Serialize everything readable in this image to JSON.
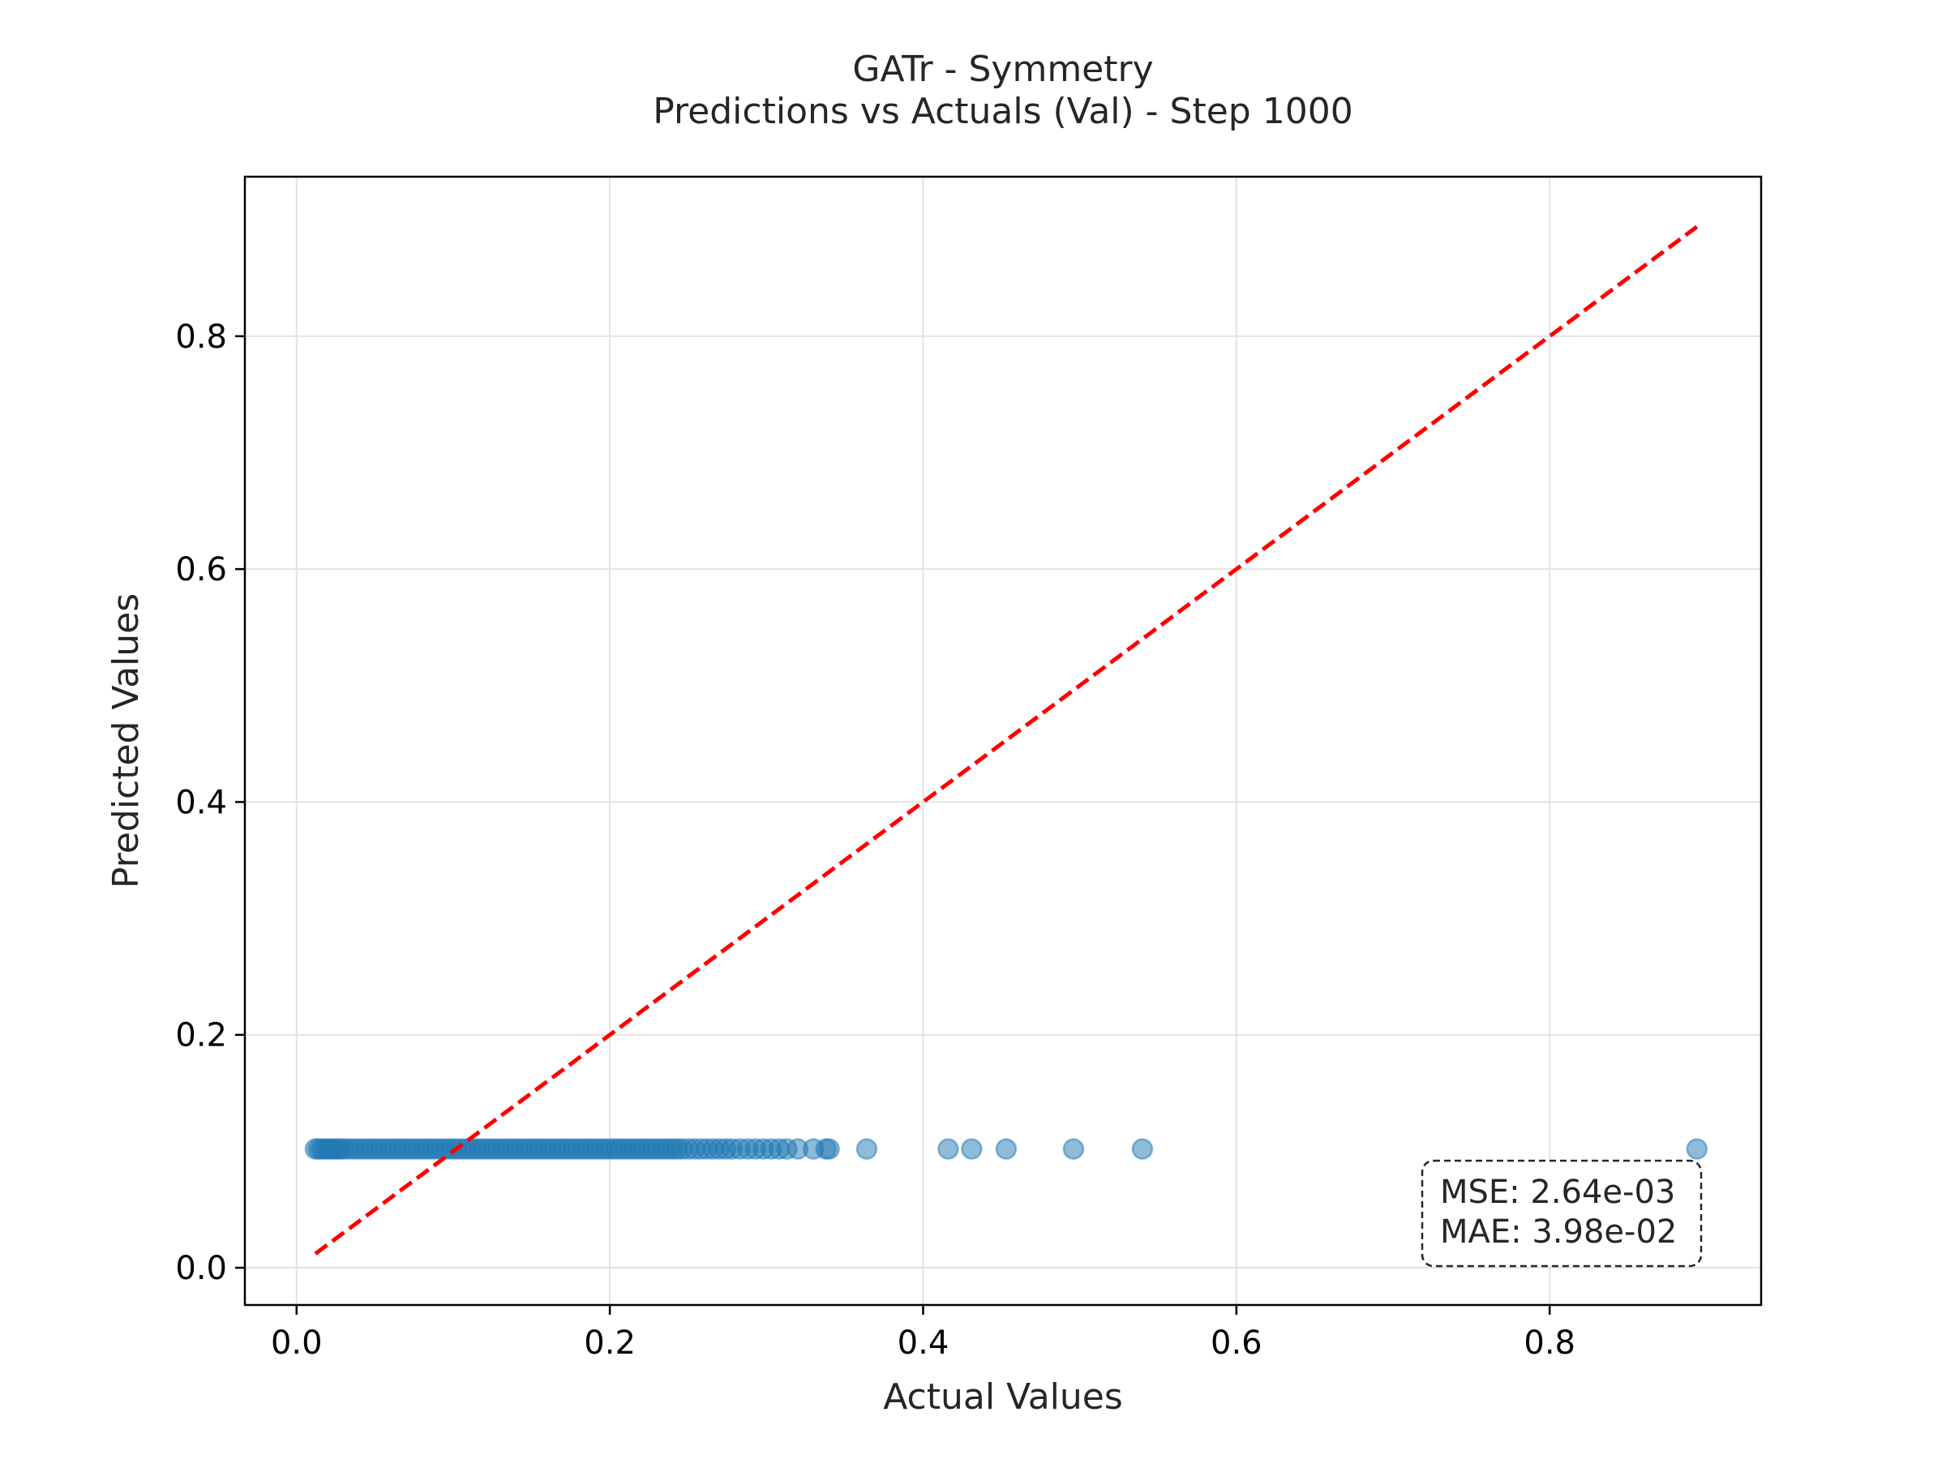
{
  "chart_data": {
    "type": "scatter",
    "title": "GATr - Symmetry",
    "subtitle": "Predictions vs Actuals (Val) - Step 1000",
    "xlabel": "Actual Values",
    "ylabel": "Predicted Values",
    "xlim": [
      -0.033,
      0.935
    ],
    "ylim": [
      -0.032,
      0.937
    ],
    "xticks": [
      0.0,
      0.2,
      0.4,
      0.6,
      0.8
    ],
    "yticks": [
      0.0,
      0.2,
      0.4,
      0.6,
      0.8
    ],
    "xtick_labels": [
      "0.0",
      "0.2",
      "0.4",
      "0.6",
      "0.8"
    ],
    "ytick_labels": [
      "0.0",
      "0.2",
      "0.4",
      "0.6",
      "0.8"
    ],
    "grid": true,
    "legend": "none",
    "point_color": "#1f77b4",
    "point_alpha": 0.5,
    "series": [
      {
        "x": [
          0.012,
          0.014,
          0.016,
          0.018,
          0.02,
          0.022,
          0.024,
          0.026,
          0.028,
          0.03,
          0.033,
          0.036,
          0.039,
          0.042,
          0.045,
          0.048,
          0.051,
          0.054,
          0.057,
          0.06,
          0.063,
          0.066,
          0.069,
          0.072,
          0.075,
          0.078,
          0.081,
          0.084,
          0.087,
          0.09,
          0.093,
          0.096,
          0.099,
          0.102,
          0.105,
          0.108,
          0.111,
          0.114,
          0.117,
          0.12,
          0.123,
          0.126,
          0.129,
          0.132,
          0.135,
          0.138,
          0.141,
          0.144,
          0.147,
          0.15,
          0.153,
          0.156,
          0.159,
          0.162,
          0.165,
          0.168,
          0.171,
          0.174,
          0.177,
          0.18,
          0.183,
          0.186,
          0.189,
          0.192,
          0.195,
          0.198,
          0.201,
          0.204,
          0.207,
          0.21,
          0.213,
          0.216,
          0.219,
          0.222,
          0.225,
          0.228,
          0.231,
          0.234,
          0.237,
          0.24,
          0.243,
          0.246,
          0.25,
          0.254,
          0.258,
          0.262,
          0.266,
          0.27,
          0.274,
          0.278,
          0.283,
          0.288,
          0.293,
          0.298,
          0.303,
          0.308,
          0.313,
          0.32,
          0.33,
          0.338,
          0.34,
          0.364,
          0.416,
          0.431,
          0.453,
          0.496,
          0.54,
          0.894
        ],
        "y": [
          0.102,
          0.102,
          0.102,
          0.102,
          0.102,
          0.102,
          0.102,
          0.102,
          0.102,
          0.102,
          0.102,
          0.102,
          0.102,
          0.102,
          0.102,
          0.102,
          0.102,
          0.102,
          0.102,
          0.102,
          0.102,
          0.102,
          0.102,
          0.102,
          0.102,
          0.102,
          0.102,
          0.102,
          0.102,
          0.102,
          0.102,
          0.102,
          0.102,
          0.102,
          0.102,
          0.102,
          0.102,
          0.102,
          0.102,
          0.102,
          0.102,
          0.102,
          0.102,
          0.102,
          0.102,
          0.102,
          0.102,
          0.102,
          0.102,
          0.102,
          0.102,
          0.102,
          0.102,
          0.102,
          0.102,
          0.102,
          0.102,
          0.102,
          0.102,
          0.102,
          0.102,
          0.102,
          0.102,
          0.102,
          0.102,
          0.102,
          0.102,
          0.102,
          0.102,
          0.102,
          0.102,
          0.102,
          0.102,
          0.102,
          0.102,
          0.102,
          0.102,
          0.102,
          0.102,
          0.102,
          0.102,
          0.102,
          0.102,
          0.102,
          0.102,
          0.102,
          0.102,
          0.102,
          0.102,
          0.102,
          0.102,
          0.102,
          0.102,
          0.102,
          0.102,
          0.102,
          0.102,
          0.102,
          0.102,
          0.102,
          0.102,
          0.102,
          0.102,
          0.102,
          0.102,
          0.102,
          0.102,
          0.102
        ]
      }
    ],
    "reference_line": {
      "style": "dashed",
      "color": "#ff0000",
      "x": [
        0.012,
        0.894
      ],
      "y": [
        0.012,
        0.894
      ]
    },
    "annotation": {
      "mse": "MSE: 2.64e-03",
      "mae": "MAE: 3.98e-02",
      "placement": "bottom-right"
    }
  }
}
